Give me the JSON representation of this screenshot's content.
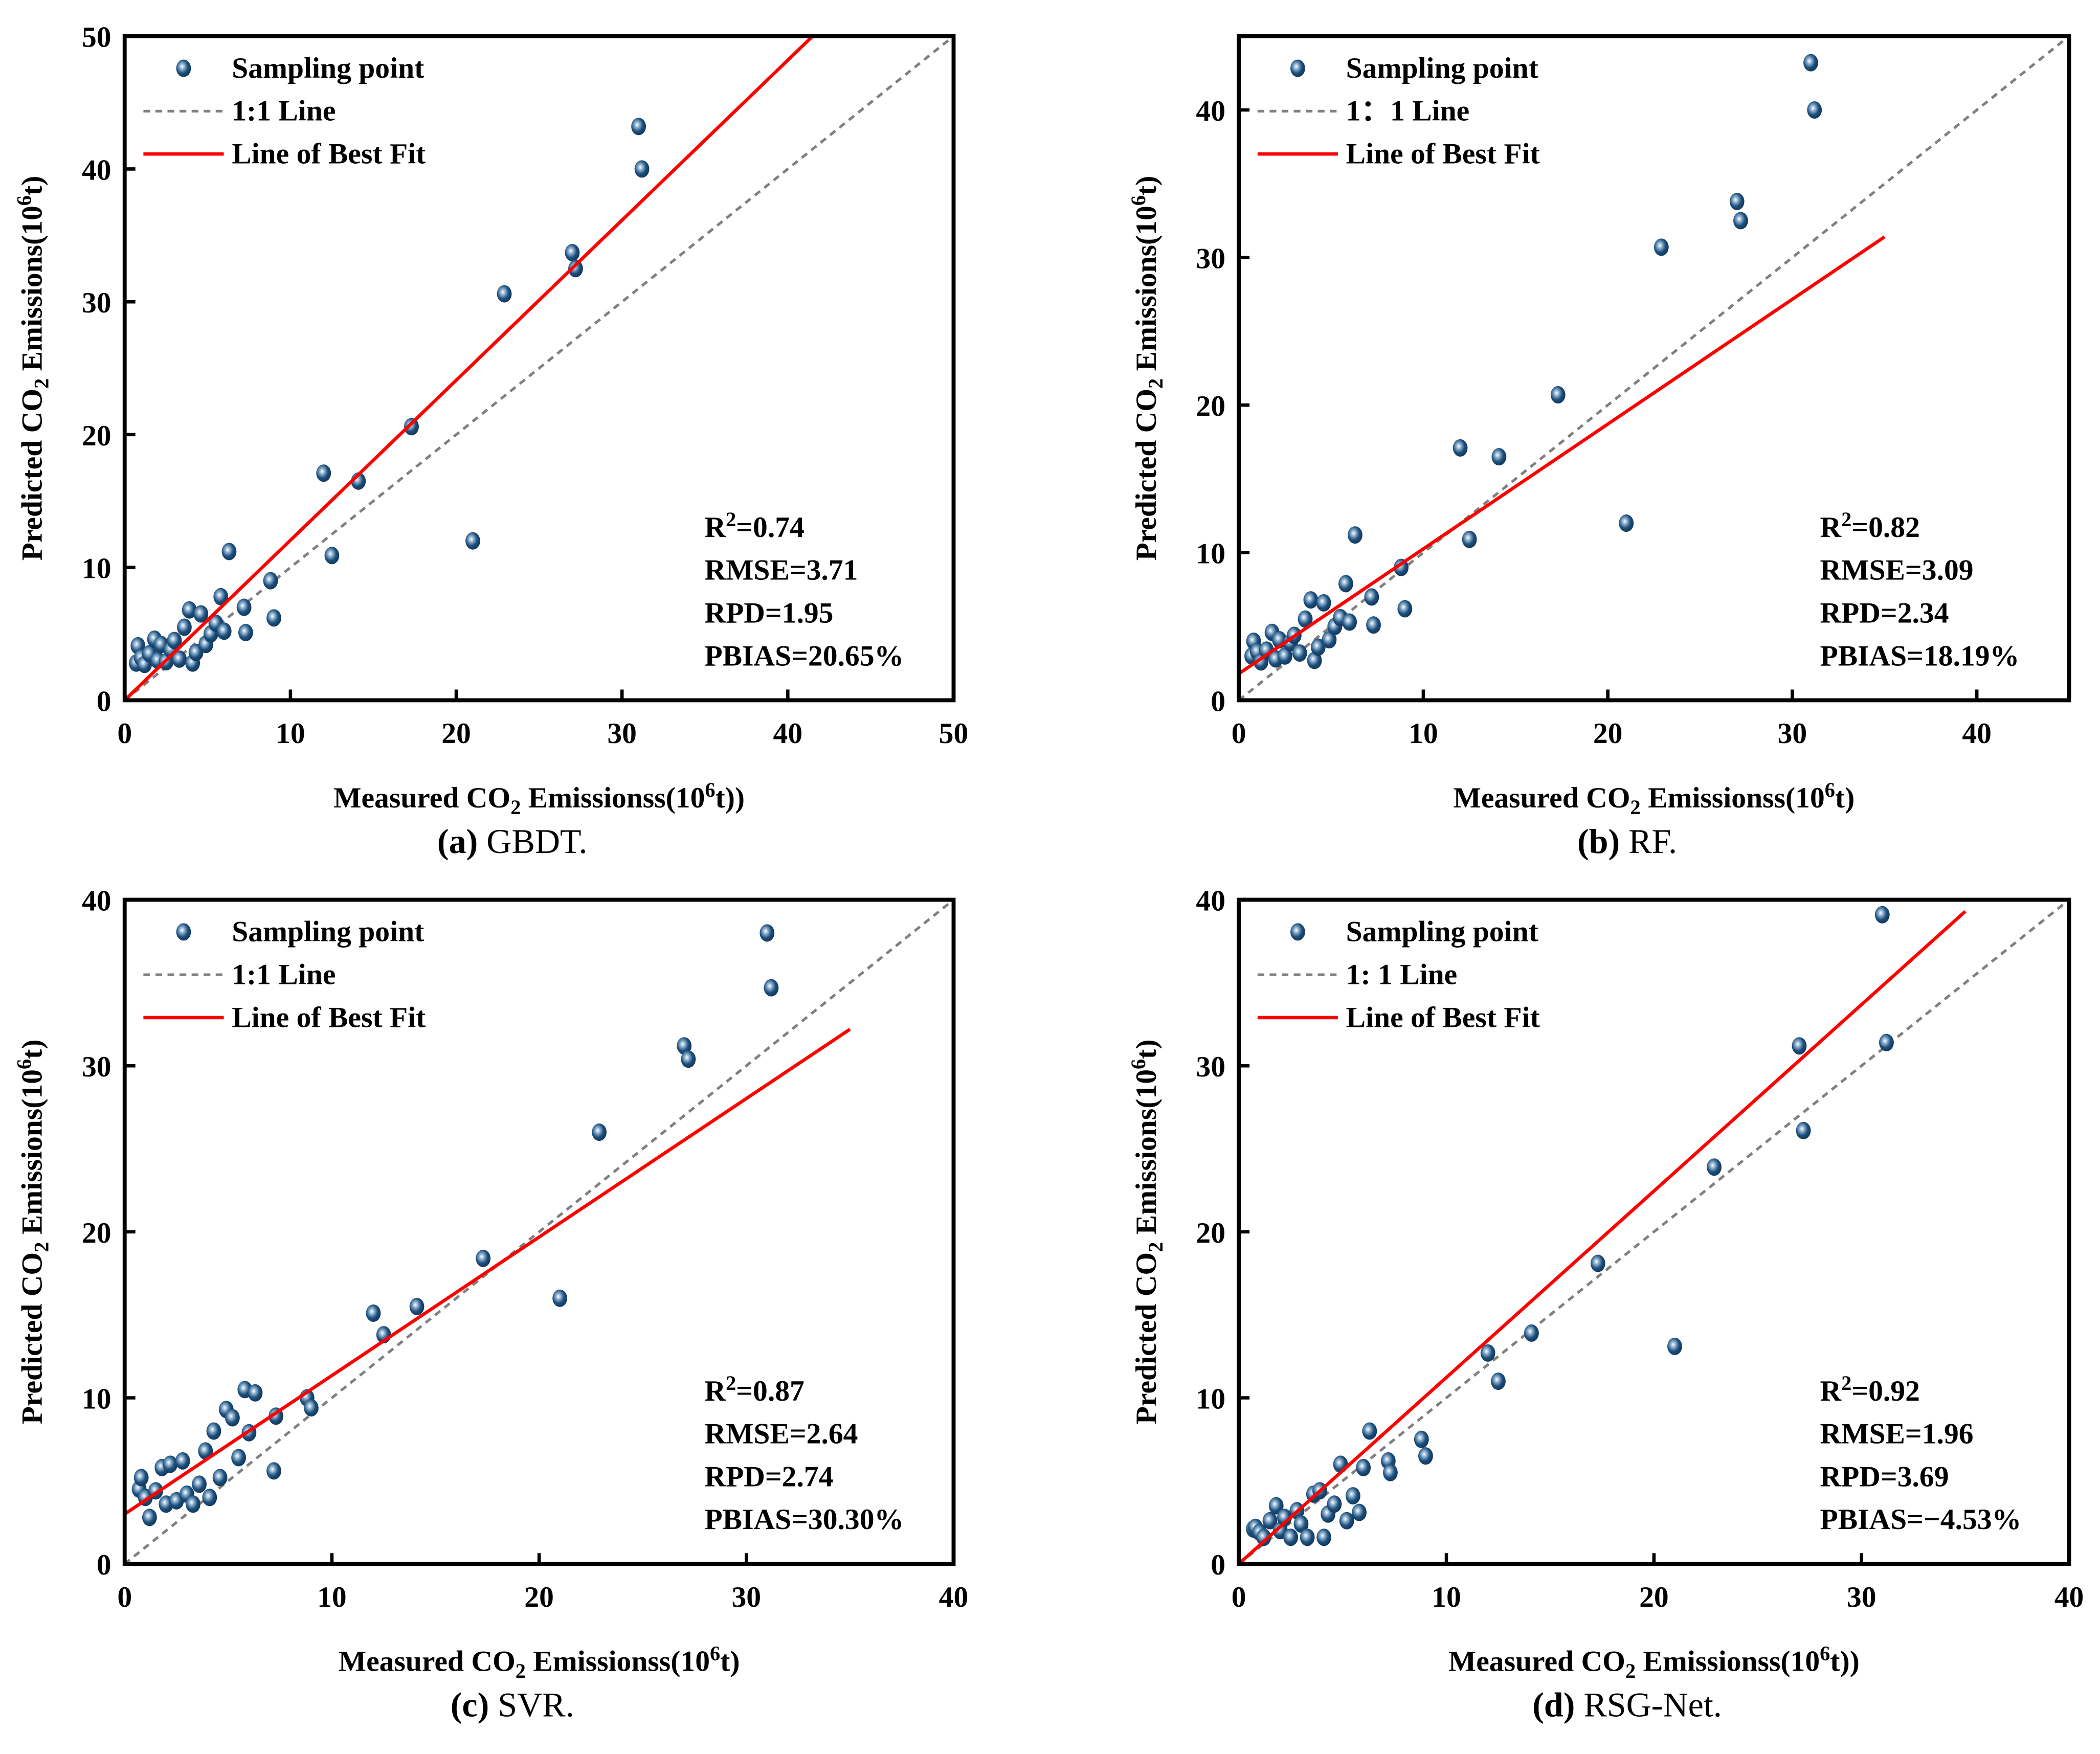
{
  "chart_data": [
    {
      "type": "scatter",
      "caption_letter": "(a)",
      "caption_name": " GBDT.",
      "xlim": [
        0,
        50
      ],
      "ylim": [
        0,
        50
      ],
      "xticks": [
        "0",
        "10",
        "20",
        "30",
        "40",
        "50"
      ],
      "yticks": [
        "0",
        "10",
        "20",
        "30",
        "40",
        "50"
      ],
      "xlabel": {
        "pre": "Measured CO",
        "sub": "2",
        "mid": " Emissionss(10",
        "sup": "6",
        "post": "t))"
      },
      "ylabel": {
        "pre": "Predicted CO",
        "sub": "2",
        "mid": " Emissions(10",
        "sup": "6",
        "post": "t)"
      },
      "legend": {
        "points": "Sampling point",
        "identity": "1:1 Line",
        "fit": "Line of Best Fit",
        "placement": "top-left"
      },
      "stats": {
        "r2_label": "R",
        "r2_sup": "2",
        "r2": "=0.74",
        "rmse": "RMSE=3.71",
        "rpd": "RPD=1.95",
        "pbias": "PBIAS=20.65%"
      },
      "fit_line": {
        "x": [
          0,
          41.5
        ],
        "y": [
          0,
          50
        ]
      },
      "x": [
        0.7,
        0.8,
        1.0,
        1.2,
        1.5,
        1.8,
        2.0,
        2.2,
        2.5,
        2.8,
        3.0,
        3.3,
        3.6,
        3.9,
        4.1,
        4.3,
        4.6,
        4.9,
        5.2,
        5.5,
        5.8,
        6.0,
        6.3,
        7.2,
        7.3,
        8.8,
        9.0,
        12.0,
        12.5,
        14.1,
        17.3,
        21.0,
        22.9,
        27.0,
        27.2,
        31.0,
        31.2
      ],
      "y": [
        2.8,
        4.1,
        3.2,
        2.7,
        3.5,
        4.6,
        3.0,
        4.2,
        2.9,
        3.8,
        4.5,
        3.1,
        5.5,
        6.8,
        2.8,
        3.6,
        6.5,
        4.2,
        5.0,
        5.8,
        7.8,
        5.2,
        11.2,
        7.0,
        5.1,
        9.0,
        6.2,
        17.1,
        10.9,
        16.5,
        20.6,
        12.0,
        30.6,
        33.7,
        32.5,
        43.2,
        40.0
      ]
    },
    {
      "type": "scatter",
      "caption_letter": "(b)",
      "caption_name": " RF.",
      "xlim": [
        0,
        45
      ],
      "ylim": [
        0,
        45
      ],
      "xticks": [
        "0",
        "10",
        "20",
        "30",
        "40"
      ],
      "yticks": [
        "0",
        "10",
        "20",
        "30",
        "40"
      ],
      "xlabel": {
        "pre": "Measured CO",
        "sub": "2",
        "mid": " Emissionss(10",
        "sup": "6",
        "post": "t)"
      },
      "ylabel": {
        "pre": "Predicted CO",
        "sub": "2",
        "mid": " Emissions(10",
        "sup": "6",
        "post": "t)"
      },
      "legend": {
        "points": "Sampling point",
        "identity": "1：1 Line",
        "fit": "Line of Best Fit",
        "placement": "top-left"
      },
      "stats": {
        "r2_label": "R",
        "r2_sup": "2",
        "r2": "=0.82",
        "rmse": "RMSE=3.09",
        "rpd": "RPD=2.34",
        "pbias": "PBIAS=18.19%"
      },
      "fit_line": {
        "x": [
          0,
          35
        ],
        "y": [
          1.8,
          31.4
        ]
      },
      "x": [
        0.7,
        0.8,
        1.0,
        1.2,
        1.5,
        1.8,
        2.0,
        2.2,
        2.5,
        2.8,
        3.0,
        3.3,
        3.6,
        3.9,
        4.1,
        4.3,
        4.6,
        4.9,
        5.2,
        5.5,
        5.8,
        6.0,
        6.3,
        7.2,
        7.3,
        8.8,
        9.0,
        12.0,
        12.5,
        14.1,
        17.3,
        21.0,
        22.9,
        27.0,
        27.2,
        31.0,
        31.2
      ],
      "y": [
        3.0,
        4.0,
        3.3,
        2.6,
        3.4,
        4.6,
        2.8,
        4.1,
        3.0,
        3.9,
        4.4,
        3.2,
        5.5,
        6.8,
        2.7,
        3.6,
        6.6,
        4.1,
        5.0,
        5.6,
        7.9,
        5.3,
        11.2,
        7.0,
        5.1,
        9.0,
        6.2,
        17.1,
        10.9,
        16.5,
        20.7,
        12.0,
        30.7,
        33.8,
        32.5,
        43.2,
        40.0
      ]
    },
    {
      "type": "scatter",
      "caption_letter": "(c)",
      "caption_name": " SVR.",
      "xlim": [
        0,
        40
      ],
      "ylim": [
        0,
        40
      ],
      "xticks": [
        "0",
        "10",
        "20",
        "30",
        "40"
      ],
      "yticks": [
        "0",
        "10",
        "20",
        "30",
        "40"
      ],
      "xlabel": {
        "pre": "Measured CO",
        "sub": "2",
        "mid": " Emissionss(10",
        "sup": "6",
        "post": "t)"
      },
      "ylabel": {
        "pre": "Predicted CO",
        "sub": "2",
        "mid": " Emissions(10",
        "sup": "6",
        "post": "t)"
      },
      "legend": {
        "points": "Sampling point",
        "identity": "1:1 Line",
        "fit": "Line of Best Fit",
        "placement": "top-left"
      },
      "stats": {
        "r2_label": "R",
        "r2_sup": "2",
        "r2": "=0.87",
        "rmse": "RMSE=2.64",
        "rpd": "RPD=2.74",
        "pbias": "PBIAS=30.30%"
      },
      "fit_line": {
        "x": [
          0,
          35
        ],
        "y": [
          3.0,
          32.2
        ]
      },
      "x": [
        0.7,
        0.8,
        1.0,
        1.2,
        1.5,
        1.8,
        2.0,
        2.2,
        2.5,
        2.8,
        3.0,
        3.3,
        3.6,
        3.9,
        4.1,
        4.3,
        4.6,
        4.9,
        5.2,
        5.5,
        5.8,
        6.0,
        6.3,
        7.2,
        7.3,
        8.8,
        9.0,
        12.0,
        12.5,
        14.1,
        17.3,
        21.0,
        22.9,
        27.0,
        27.2,
        31.0,
        31.2
      ],
      "y": [
        4.5,
        5.2,
        4.0,
        2.8,
        4.4,
        5.8,
        3.6,
        6.0,
        3.8,
        6.2,
        4.2,
        3.6,
        4.8,
        6.8,
        4.0,
        8.0,
        5.2,
        9.3,
        8.8,
        6.4,
        10.5,
        7.9,
        10.3,
        5.6,
        8.9,
        10.0,
        9.4,
        15.1,
        13.8,
        15.5,
        18.4,
        16.0,
        26.0,
        31.2,
        30.4,
        38.0,
        34.7
      ]
    },
    {
      "type": "scatter",
      "caption_letter": "(d)",
      "caption_name": " RSG-Net.",
      "xlim": [
        0,
        40
      ],
      "ylim": [
        0,
        40
      ],
      "xticks": [
        "0",
        "10",
        "20",
        "30",
        "40"
      ],
      "yticks": [
        "0",
        "10",
        "20",
        "30",
        "40"
      ],
      "xlabel": {
        "pre": "Measured CO",
        "sub": "2",
        "mid": " Emissionss(10",
        "sup": "6",
        "post": "t))"
      },
      "ylabel": {
        "pre": "Predicted CO",
        "sub": "2",
        "mid": " Emissions(10",
        "sup": "6",
        "post": "t)"
      },
      "legend": {
        "points": "Sampling point",
        "identity": "1: 1 Line",
        "fit": "Line of Best Fit",
        "placement": "top-left"
      },
      "stats": {
        "r2_label": "R",
        "r2_sup": "2",
        "r2": "=0.92",
        "rmse": "RMSE=1.96",
        "rpd": "RPD=3.69",
        "pbias": "PBIAS=−4.53%"
      },
      "fit_line": {
        "x": [
          0,
          35
        ],
        "y": [
          0,
          39.3
        ]
      },
      "x": [
        0.7,
        0.8,
        1.0,
        1.2,
        1.5,
        1.8,
        2.0,
        2.2,
        2.5,
        2.8,
        3.0,
        3.3,
        3.6,
        3.9,
        4.1,
        4.3,
        4.6,
        4.9,
        5.2,
        5.5,
        5.8,
        6.0,
        6.3,
        7.2,
        7.3,
        8.8,
        9.0,
        12.0,
        12.5,
        14.1,
        17.3,
        21.0,
        22.9,
        27.0,
        27.2,
        31.0,
        31.2
      ],
      "y": [
        2.1,
        2.2,
        1.9,
        1.6,
        2.6,
        3.5,
        2.0,
        2.8,
        1.6,
        3.2,
        2.4,
        1.6,
        4.2,
        4.4,
        1.6,
        3.0,
        3.6,
        6.0,
        2.6,
        4.1,
        3.1,
        5.8,
        8.0,
        6.2,
        5.5,
        7.5,
        6.5,
        12.7,
        11.0,
        13.9,
        18.1,
        13.1,
        23.9,
        31.2,
        26.1,
        39.1,
        31.4
      ]
    }
  ],
  "colors": {
    "point": "#1d4f7c",
    "fit": "#ff0000",
    "identity": "#808080"
  }
}
